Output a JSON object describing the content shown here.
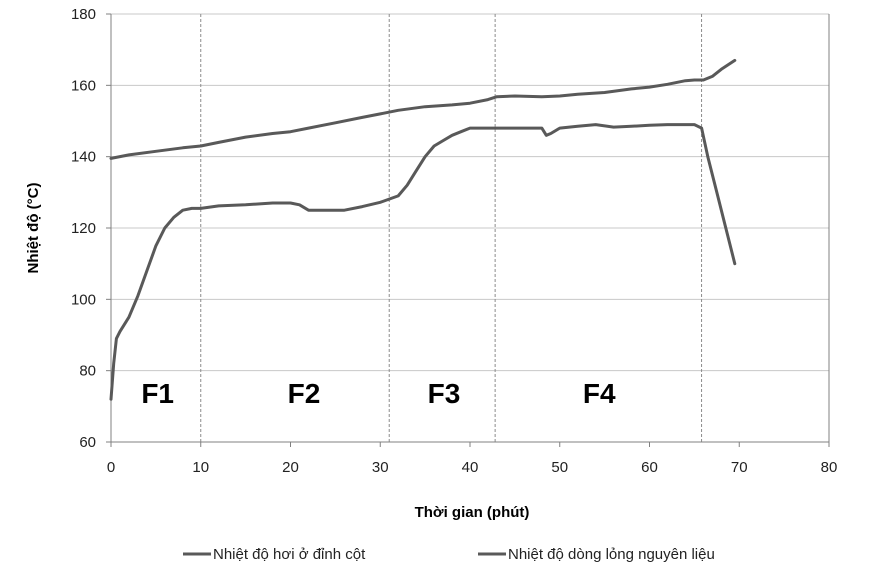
{
  "chart_data": {
    "type": "line",
    "title": "",
    "xlabel": "Thời gian (phút)",
    "ylabel": "Nhiệt độ (°C)",
    "xlim": [
      0,
      80
    ],
    "ylim": [
      60,
      180
    ],
    "x_ticks": [
      0,
      10,
      20,
      30,
      40,
      50,
      60,
      70,
      80
    ],
    "y_ticks": [
      60,
      80,
      100,
      120,
      140,
      160,
      180
    ],
    "grid": "horizontal",
    "legend_position": "bottom",
    "line_color": "#595959",
    "divider_color": "#8c8c8c",
    "dividers": [
      10,
      31,
      42.8,
      65.8
    ],
    "regions": [
      {
        "label": "F1",
        "x": 5.2,
        "y": 71
      },
      {
        "label": "F2",
        "x": 21.5,
        "y": 71
      },
      {
        "label": "F3",
        "x": 37.1,
        "y": 71
      },
      {
        "label": "F4",
        "x": 54.4,
        "y": 71
      }
    ],
    "series": [
      {
        "name": "Nhiệt độ hơi ở đỉnh cột",
        "x": [
          0,
          0.3,
          0.6,
          1,
          2,
          3,
          4,
          5,
          6,
          7,
          8,
          9,
          10,
          12,
          15,
          18,
          20,
          21,
          22,
          24,
          26,
          28,
          30,
          32,
          33,
          34,
          35,
          36,
          37,
          38,
          39,
          40,
          41,
          42,
          43,
          45,
          48,
          48.5,
          49,
          50,
          52,
          54,
          56,
          58,
          60,
          62,
          64,
          65,
          65.8,
          66.5,
          67.5,
          68.5,
          69.5
        ],
        "values": [
          72,
          82,
          89,
          91,
          95,
          101,
          108,
          115,
          120,
          123,
          125,
          125.5,
          125.5,
          126.2,
          126.5,
          127,
          127,
          126.5,
          125,
          125,
          125,
          126,
          127.2,
          129,
          132,
          136,
          140,
          143,
          144.5,
          146,
          147,
          148,
          148,
          148,
          148,
          148,
          148,
          146,
          146.5,
          148,
          148.5,
          149,
          148.3,
          148.5,
          148.8,
          149,
          149,
          149,
          148,
          140,
          130,
          120,
          110
        ]
      },
      {
        "name": "Nhiệt độ dòng lỏng nguyên liệu",
        "x": [
          0,
          2,
          5,
          8,
          10,
          12,
          15,
          18,
          20,
          22,
          25,
          28,
          30,
          32,
          35,
          38,
          40,
          42,
          43,
          45,
          48,
          50,
          52,
          55,
          58,
          60,
          62,
          64,
          65,
          66,
          67,
          68,
          69.5
        ],
        "values": [
          139.5,
          140.5,
          141.5,
          142.5,
          143,
          144,
          145.5,
          146.5,
          147,
          148,
          149.5,
          151,
          152,
          153,
          154,
          154.5,
          155,
          156,
          156.8,
          157,
          156.8,
          157,
          157.5,
          158,
          159,
          159.5,
          160.3,
          161.3,
          161.5,
          161.5,
          162.5,
          164.5,
          167
        ]
      }
    ]
  }
}
